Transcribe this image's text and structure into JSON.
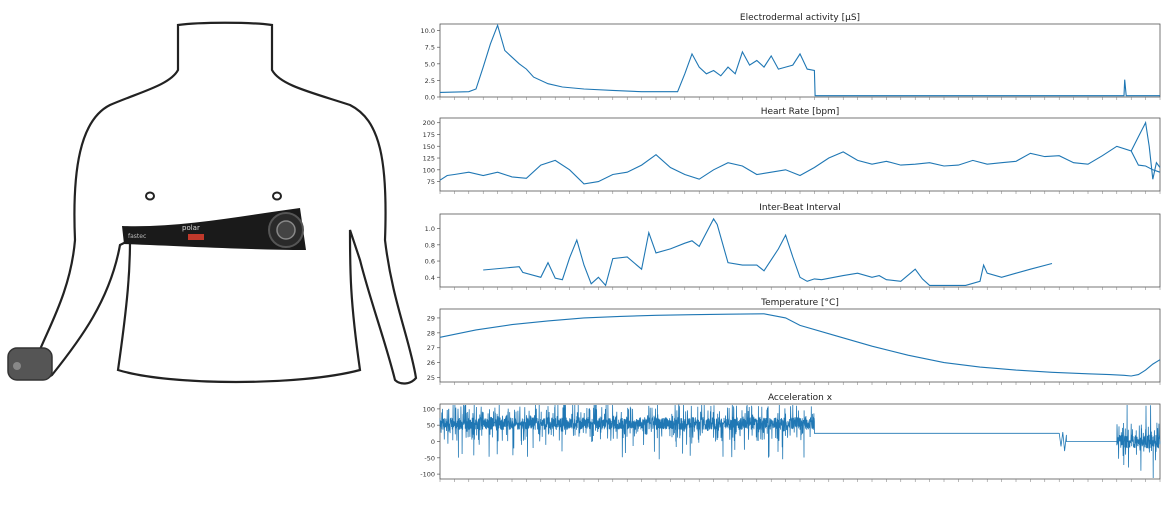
{
  "figure": {
    "illustration": {
      "strap_brand": "polar",
      "strap_text_left": "fastec"
    }
  },
  "colors": {
    "line": "#1f77b4",
    "outline": "#222222",
    "strap": "#1a1a1a",
    "strap_logo": "#c0392b"
  },
  "chart_data": [
    {
      "type": "line",
      "title": "Electrodermal activity [μS]",
      "xlabel": "",
      "ylabel": "",
      "ylim": [
        0,
        11
      ],
      "yticks": [
        "0.0",
        "2.5",
        "5.0",
        "7.5",
        "10.0"
      ],
      "ytick_values": [
        0,
        2.5,
        5,
        7.5,
        10
      ],
      "xlim": [
        0,
        100
      ],
      "x": [
        0,
        4,
        5,
        6,
        7,
        8,
        9,
        10,
        11,
        12,
        13,
        15,
        17,
        20,
        24,
        28,
        33,
        34,
        35,
        36,
        37,
        38,
        39,
        40,
        41,
        42,
        43,
        44,
        45,
        46,
        47,
        48,
        49,
        50,
        51,
        52,
        52.1,
        60,
        70,
        80,
        90,
        95,
        95.1,
        95.3,
        95.5,
        100
      ],
      "values": [
        0.7,
        0.8,
        1.2,
        4.5,
        8.0,
        10.8,
        7.0,
        6.0,
        5.0,
        4.2,
        3.0,
        2.0,
        1.5,
        1.2,
        1.0,
        0.8,
        0.8,
        3.5,
        6.5,
        4.5,
        3.5,
        4.0,
        3.2,
        4.5,
        3.5,
        6.8,
        4.8,
        5.5,
        4.5,
        6.2,
        4.2,
        4.5,
        4.8,
        6.5,
        4.2,
        4.0,
        0.2,
        0.2,
        0.2,
        0.2,
        0.2,
        0.2,
        2.6,
        0.2,
        0.2,
        0.2
      ]
    },
    {
      "type": "line",
      "title": "Heart Rate [bpm]",
      "xlabel": "",
      "ylabel": "",
      "ylim": [
        55,
        210
      ],
      "yticks": [
        "75",
        "100",
        "125",
        "150",
        "175",
        "200"
      ],
      "ytick_values": [
        75,
        100,
        125,
        150,
        175,
        200
      ],
      "xlim": [
        0,
        100
      ],
      "x": [
        0,
        1,
        2,
        4,
        6,
        8,
        10,
        12,
        14,
        16,
        18,
        20,
        22,
        24,
        26,
        28,
        30,
        32,
        34,
        36,
        38,
        40,
        42,
        44,
        46,
        48,
        50,
        52,
        54,
        56,
        58,
        60,
        62,
        64,
        66,
        68,
        70,
        72,
        74,
        76,
        78,
        80,
        82,
        84,
        86,
        88,
        90,
        92,
        94,
        96,
        97,
        98,
        99,
        100
      ],
      "values": [
        78,
        88,
        90,
        95,
        88,
        95,
        85,
        82,
        110,
        120,
        100,
        70,
        75,
        90,
        95,
        110,
        132,
        105,
        90,
        80,
        100,
        115,
        108,
        90,
        95,
        100,
        88,
        105,
        125,
        138,
        120,
        112,
        118,
        110,
        112,
        115,
        108,
        110,
        120,
        112,
        115,
        118,
        135,
        128,
        130,
        115,
        112,
        130,
        150,
        140,
        110,
        108,
        100,
        95
      ],
      "extra_tail_x": [
        96,
        97,
        98,
        98.5,
        99,
        99.5,
        100
      ],
      "extra_tail_values": [
        140,
        170,
        200,
        150,
        80,
        115,
        105
      ]
    },
    {
      "type": "line",
      "title": "Inter-Beat Interval",
      "xlabel": "",
      "ylabel": "",
      "ylim": [
        0.28,
        1.18
      ],
      "yticks": [
        "0.4",
        "0.6",
        "0.8",
        "1.0"
      ],
      "ytick_values": [
        0.4,
        0.6,
        0.8,
        1.0
      ],
      "xlim": [
        0,
        100
      ],
      "x": [
        6,
        11,
        11.5,
        14,
        15,
        16,
        17,
        18,
        19,
        20,
        21,
        22,
        23,
        24,
        26,
        28,
        29,
        30,
        32,
        34,
        35,
        36,
        38,
        38.5,
        40,
        42,
        44,
        45,
        47,
        48,
        49,
        50,
        51,
        52,
        53,
        56,
        58,
        60,
        61,
        62,
        64,
        66,
        67,
        68,
        69,
        70,
        71,
        73,
        75,
        75.5,
        76,
        78,
        80,
        82,
        85
      ],
      "values": [
        0.49,
        0.53,
        0.46,
        0.4,
        0.58,
        0.39,
        0.37,
        0.64,
        0.86,
        0.55,
        0.32,
        0.4,
        0.3,
        0.63,
        0.65,
        0.5,
        0.95,
        0.7,
        0.75,
        0.82,
        0.85,
        0.78,
        1.12,
        1.05,
        0.58,
        0.55,
        0.55,
        0.48,
        0.75,
        0.92,
        0.65,
        0.4,
        0.35,
        0.38,
        0.37,
        0.42,
        0.45,
        0.4,
        0.42,
        0.37,
        0.35,
        0.5,
        0.38,
        0.3,
        0.3,
        0.3,
        0.3,
        0.3,
        0.35,
        0.55,
        0.45,
        0.4,
        0.45,
        0.5,
        0.57
      ]
    },
    {
      "type": "line",
      "title": "Temperature [°C]",
      "xlabel": "",
      "ylabel": "",
      "ylim": [
        24.7,
        29.6
      ],
      "yticks": [
        "25",
        "26",
        "27",
        "28",
        "29"
      ],
      "ytick_values": [
        25,
        26,
        27,
        28,
        29
      ],
      "xlim": [
        0,
        100
      ],
      "x": [
        0,
        5,
        10,
        15,
        20,
        25,
        30,
        35,
        40,
        45,
        48,
        50,
        55,
        60,
        65,
        70,
        75,
        80,
        85,
        90,
        93,
        95,
        96,
        97,
        98,
        99,
        100
      ],
      "values": [
        27.7,
        28.2,
        28.55,
        28.8,
        29.0,
        29.1,
        29.18,
        29.22,
        29.25,
        29.28,
        29.0,
        28.5,
        27.8,
        27.1,
        26.5,
        26.0,
        25.7,
        25.5,
        25.35,
        25.25,
        25.2,
        25.15,
        25.1,
        25.2,
        25.5,
        25.9,
        26.2
      ]
    },
    {
      "type": "line",
      "title": "Acceleration x",
      "xlabel": "",
      "ylabel": "",
      "ylim": [
        -115,
        115
      ],
      "yticks": [
        "-100",
        "-50",
        "0",
        "50",
        "100"
      ],
      "ytick_values": [
        -100,
        -50,
        0,
        50,
        100
      ],
      "xlim": [
        0,
        100
      ],
      "segments": [
        {
          "x": [
            0,
            52
          ],
          "base": 55,
          "noise": "dense",
          "amplitude": 55
        },
        {
          "x": [
            52,
            86
          ],
          "base": 25,
          "noise": "flat",
          "amplitude": 0
        },
        {
          "x": [
            86,
            87
          ],
          "base": 0,
          "noise": "spike",
          "amplitude": 35
        },
        {
          "x": [
            87,
            94
          ],
          "base": 0,
          "noise": "flat",
          "amplitude": 0
        },
        {
          "x": [
            94,
            100
          ],
          "base": 0,
          "noise": "dense",
          "amplitude": 60
        }
      ]
    }
  ]
}
